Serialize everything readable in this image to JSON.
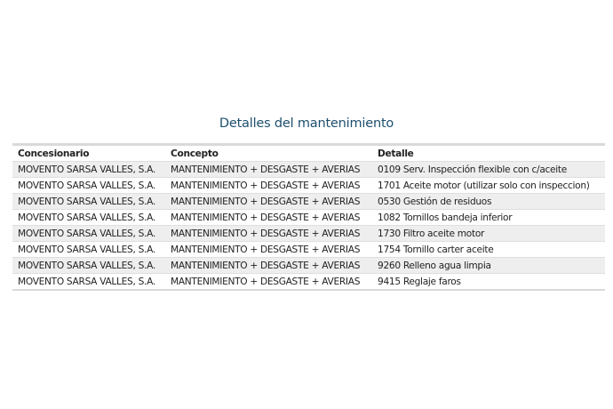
{
  "title": "Detalles del mantenimiento",
  "table": {
    "headers": [
      "Concesionario",
      "Concepto",
      "Detalle"
    ],
    "rows": [
      [
        "MOVENTO SARSA VALLES, S.A.",
        "MANTENIMIENTO + DESGASTE + AVERIAS",
        "0109 Serv. Inspección flexible con c/aceite"
      ],
      [
        "MOVENTO SARSA VALLES, S.A.",
        "MANTENIMIENTO + DESGASTE + AVERIAS",
        "1701 Aceite motor (utilizar solo con inspeccion)"
      ],
      [
        "MOVENTO SARSA VALLES, S.A.",
        "MANTENIMIENTO + DESGASTE + AVERIAS",
        "0530 Gestión de residuos"
      ],
      [
        "MOVENTO SARSA VALLES, S.A.",
        "MANTENIMIENTO + DESGASTE + AVERIAS",
        "1082 Tornillos bandeja inferior"
      ],
      [
        "MOVENTO SARSA VALLES, S.A.",
        "MANTENIMIENTO + DESGASTE + AVERIAS",
        "1730 Filtro aceite motor"
      ],
      [
        "MOVENTO SARSA VALLES, S.A.",
        "MANTENIMIENTO + DESGASTE + AVERIAS",
        "1754 Tornillo carter aceite"
      ],
      [
        "MOVENTO SARSA VALLES, S.A.",
        "MANTENIMIENTO + DESGASTE + AVERIAS",
        "9260 Relleno agua limpia"
      ],
      [
        "MOVENTO SARSA VALLES, S.A.",
        "MANTENIMIENTO + DESGASTE + AVERIAS",
        "9415 Reglaje faros"
      ]
    ]
  }
}
